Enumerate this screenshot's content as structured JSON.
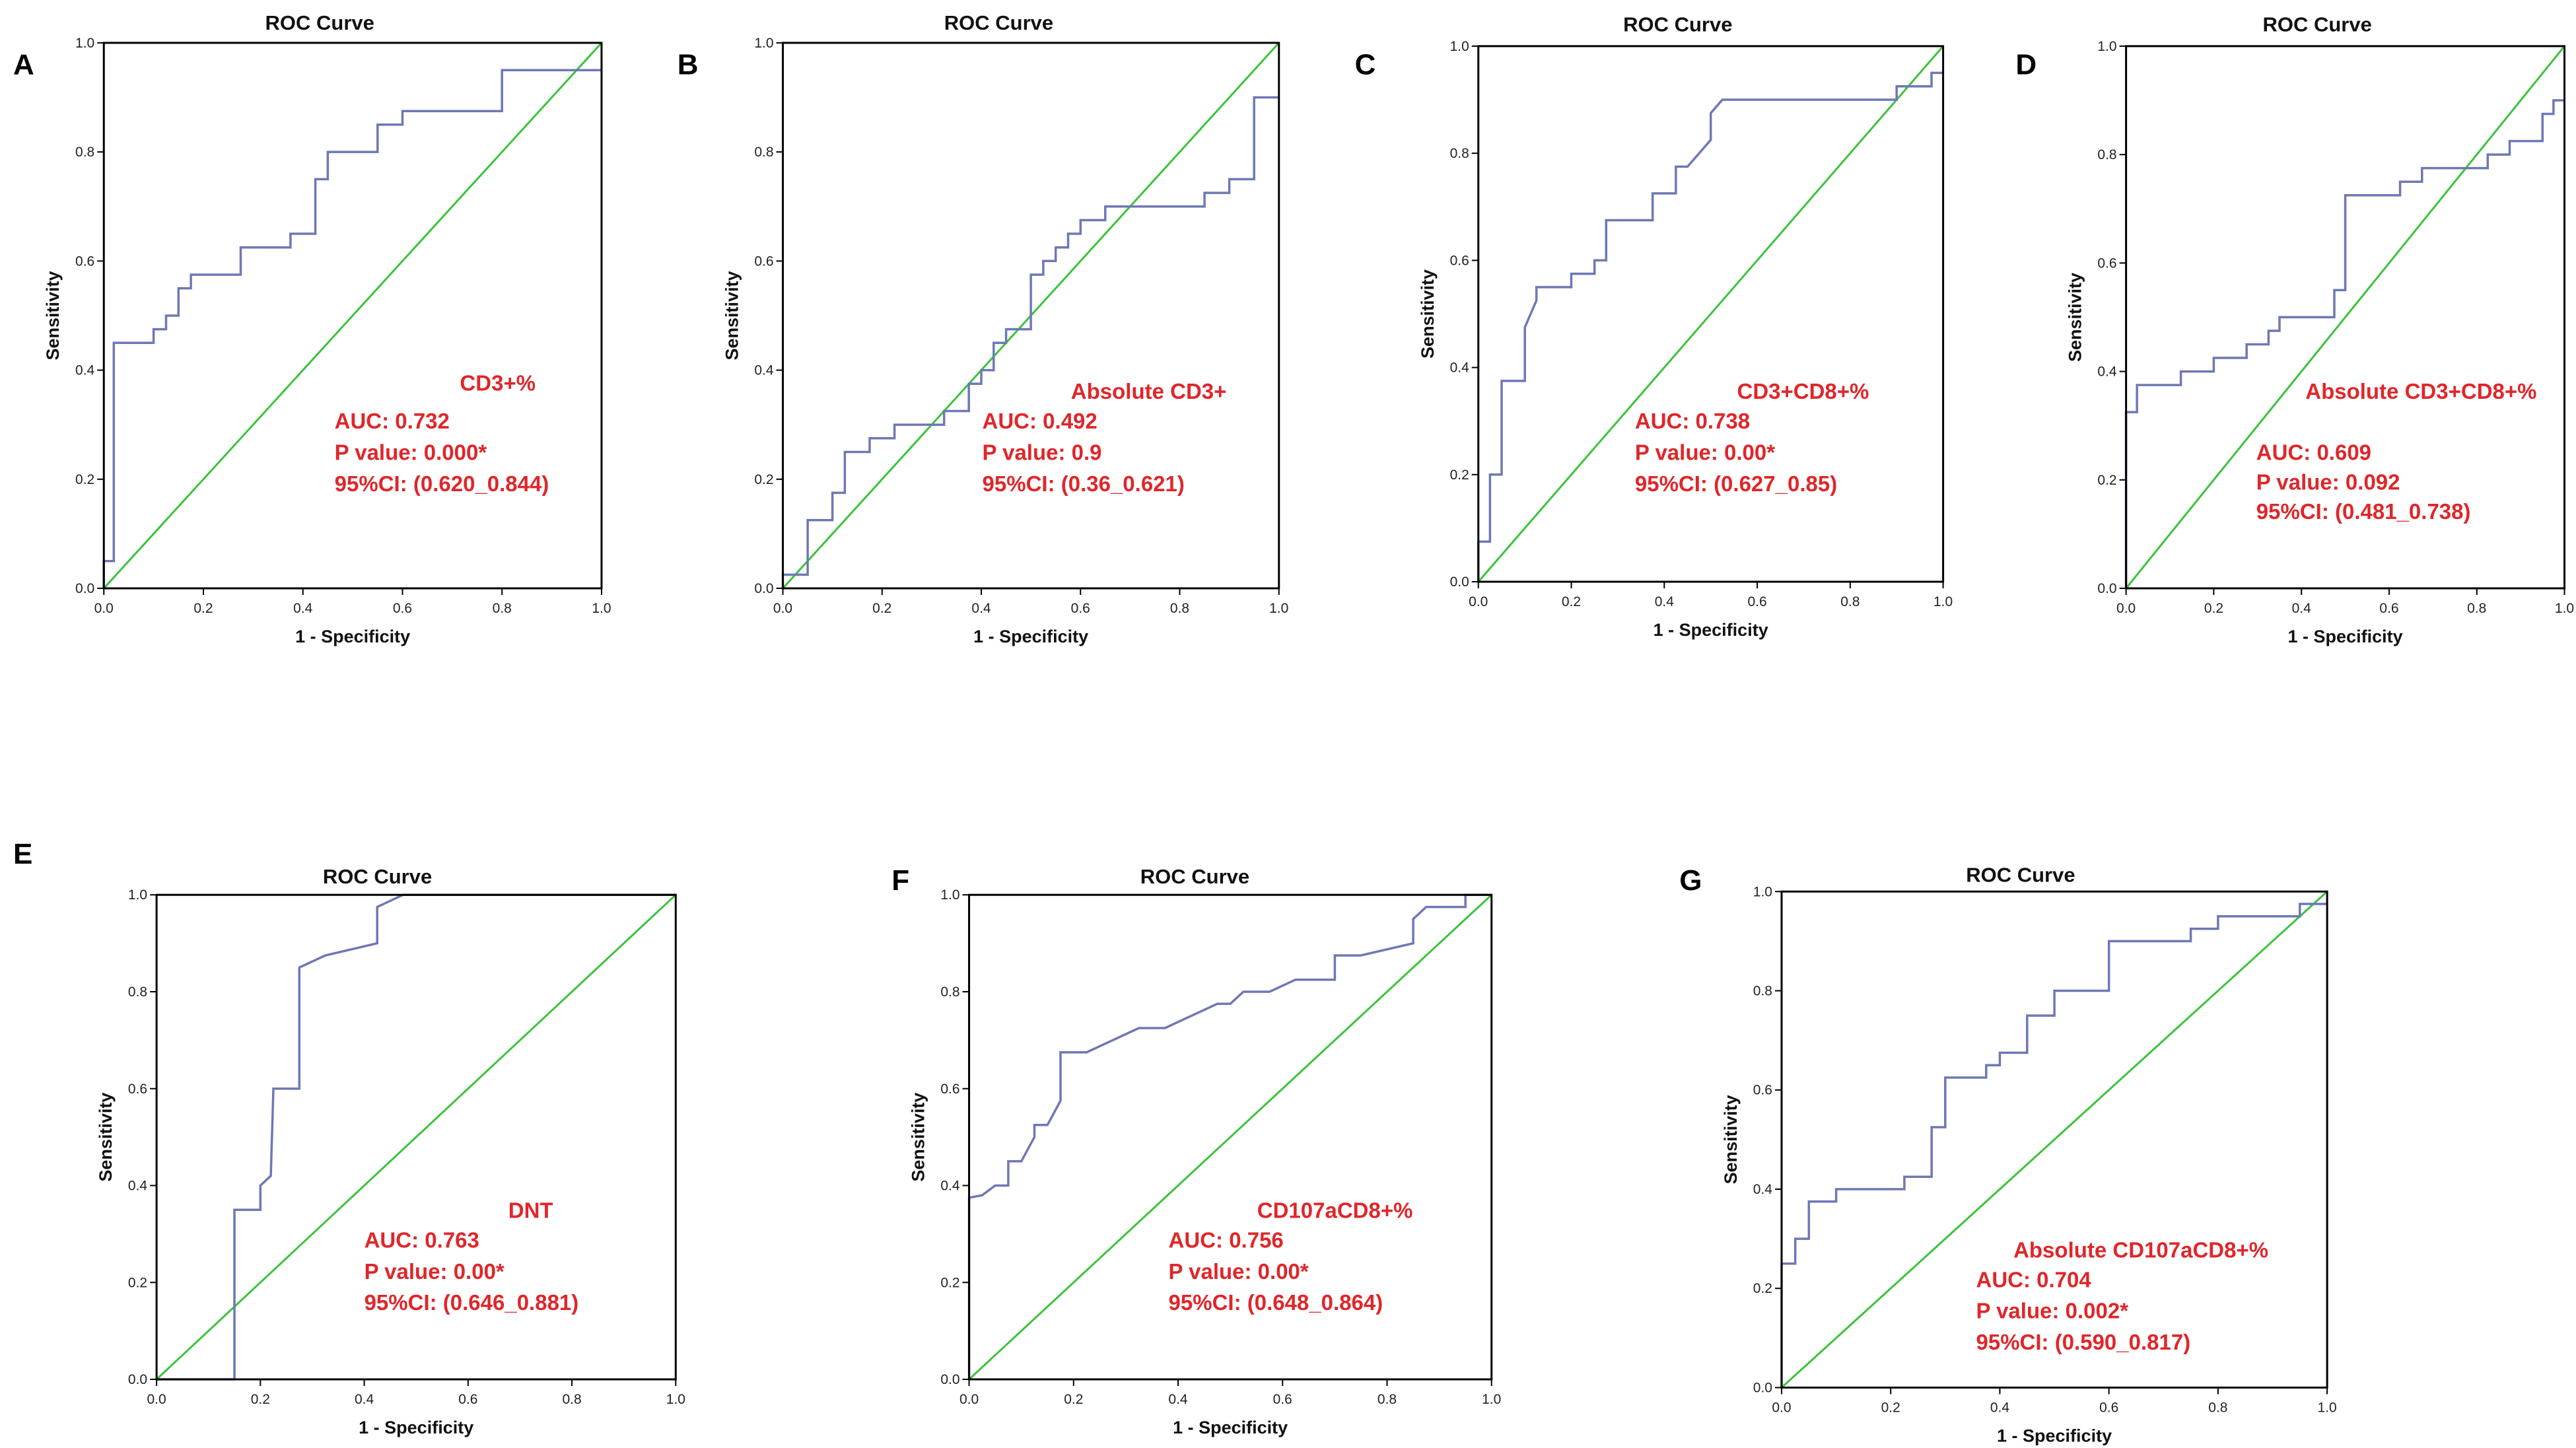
{
  "chart_data": [
    {
      "type": "line",
      "panel": "A",
      "title": "ROC Curve",
      "xlabel": "1 - Specificity",
      "ylabel": "Sensitivity",
      "xlim": [
        0,
        1
      ],
      "ylim": [
        0,
        1
      ],
      "xticks": [
        "0.0",
        "0.2",
        "0.4",
        "0.6",
        "0.8",
        "1.0"
      ],
      "yticks": [
        "0.0",
        "0.2",
        "0.4",
        "0.6",
        "0.8",
        "1.0"
      ],
      "reference_line": [
        [
          0,
          0
        ],
        [
          1,
          1
        ]
      ],
      "annotation": [
        "CD3+%",
        "AUC: 0.732",
        "P value: 0.000*",
        "95%CI: (0.620_0.844)"
      ],
      "series": [
        {
          "name": "ROC",
          "points": [
            [
              0,
              0
            ],
            [
              0,
              0.05
            ],
            [
              0.02,
              0.05
            ],
            [
              0.02,
              0.45
            ],
            [
              0.1,
              0.45
            ],
            [
              0.1,
              0.475
            ],
            [
              0.125,
              0.475
            ],
            [
              0.125,
              0.5
            ],
            [
              0.15,
              0.5
            ],
            [
              0.15,
              0.55
            ],
            [
              0.175,
              0.55
            ],
            [
              0.175,
              0.575
            ],
            [
              0.275,
              0.575
            ],
            [
              0.275,
              0.625
            ],
            [
              0.375,
              0.625
            ],
            [
              0.375,
              0.65
            ],
            [
              0.425,
              0.65
            ],
            [
              0.425,
              0.75
            ],
            [
              0.45,
              0.75
            ],
            [
              0.45,
              0.8
            ],
            [
              0.55,
              0.8
            ],
            [
              0.55,
              0.85
            ],
            [
              0.6,
              0.85
            ],
            [
              0.6,
              0.875
            ],
            [
              0.8,
              0.875
            ],
            [
              0.8,
              0.95
            ],
            [
              1,
              0.95
            ]
          ]
        }
      ]
    },
    {
      "type": "line",
      "panel": "B",
      "title": "ROC Curve",
      "xlabel": "1 - Specificity",
      "ylabel": "Sensitivity",
      "xlim": [
        0,
        1
      ],
      "ylim": [
        0,
        1
      ],
      "xticks": [
        "0.0",
        "0.2",
        "0.4",
        "0.6",
        "0.8",
        "1.0"
      ],
      "yticks": [
        "0.0",
        "0.2",
        "0.4",
        "0.6",
        "0.8",
        "1.0"
      ],
      "reference_line": [
        [
          0,
          0
        ],
        [
          1,
          1
        ]
      ],
      "annotation": [
        "Absolute CD3+",
        "AUC: 0.492",
        "P value: 0.9",
        "95%CI: (0.36_0.621)"
      ],
      "series": [
        {
          "name": "ROC",
          "points": [
            [
              0,
              0
            ],
            [
              0,
              0.025
            ],
            [
              0.05,
              0.025
            ],
            [
              0.05,
              0.125
            ],
            [
              0.1,
              0.125
            ],
            [
              0.1,
              0.175
            ],
            [
              0.125,
              0.175
            ],
            [
              0.125,
              0.25
            ],
            [
              0.175,
              0.25
            ],
            [
              0.175,
              0.275
            ],
            [
              0.225,
              0.275
            ],
            [
              0.225,
              0.3
            ],
            [
              0.325,
              0.3
            ],
            [
              0.325,
              0.325
            ],
            [
              0.375,
              0.325
            ],
            [
              0.375,
              0.375
            ],
            [
              0.4,
              0.375
            ],
            [
              0.4,
              0.4
            ],
            [
              0.425,
              0.4
            ],
            [
              0.425,
              0.45
            ],
            [
              0.45,
              0.45
            ],
            [
              0.45,
              0.475
            ],
            [
              0.5,
              0.475
            ],
            [
              0.5,
              0.575
            ],
            [
              0.525,
              0.575
            ],
            [
              0.525,
              0.6
            ],
            [
              0.55,
              0.6
            ],
            [
              0.55,
              0.625
            ],
            [
              0.575,
              0.625
            ],
            [
              0.575,
              0.65
            ],
            [
              0.6,
              0.65
            ],
            [
              0.6,
              0.675
            ],
            [
              0.65,
              0.675
            ],
            [
              0.65,
              0.7
            ],
            [
              0.85,
              0.7
            ],
            [
              0.85,
              0.725
            ],
            [
              0.9,
              0.725
            ],
            [
              0.9,
              0.75
            ],
            [
              0.95,
              0.75
            ],
            [
              0.95,
              0.9
            ],
            [
              1,
              0.9
            ]
          ]
        }
      ]
    },
    {
      "type": "line",
      "panel": "C",
      "title": "ROC Curve",
      "xlabel": "1 - Specificity",
      "ylabel": "Sensitivity",
      "xlim": [
        0,
        1
      ],
      "ylim": [
        0,
        1
      ],
      "xticks": [
        "0.0",
        "0.2",
        "0.4",
        "0.6",
        "0.8",
        "1.0"
      ],
      "yticks": [
        "0.0",
        "0.2",
        "0.4",
        "0.6",
        "0.8",
        "1.0"
      ],
      "reference_line": [
        [
          0,
          0
        ],
        [
          1,
          1
        ]
      ],
      "annotation": [
        "CD3+CD8+%",
        "AUC: 0.738",
        "P value: 0.00*",
        "95%CI: (0.627_0.85)"
      ],
      "series": [
        {
          "name": "ROC",
          "points": [
            [
              0,
              0
            ],
            [
              0,
              0.075
            ],
            [
              0.025,
              0.075
            ],
            [
              0.025,
              0.2
            ],
            [
              0.05,
              0.2
            ],
            [
              0.05,
              0.375
            ],
            [
              0.1,
              0.375
            ],
            [
              0.1,
              0.475
            ],
            [
              0.125,
              0.525
            ],
            [
              0.125,
              0.55
            ],
            [
              0.2,
              0.55
            ],
            [
              0.2,
              0.575
            ],
            [
              0.25,
              0.575
            ],
            [
              0.25,
              0.6
            ],
            [
              0.275,
              0.6
            ],
            [
              0.275,
              0.675
            ],
            [
              0.375,
              0.675
            ],
            [
              0.375,
              0.725
            ],
            [
              0.425,
              0.725
            ],
            [
              0.425,
              0.775
            ],
            [
              0.45,
              0.775
            ],
            [
              0.475,
              0.8
            ],
            [
              0.5,
              0.825
            ],
            [
              0.5,
              0.875
            ],
            [
              0.525,
              0.9
            ],
            [
              0.9,
              0.9
            ],
            [
              0.9,
              0.925
            ],
            [
              0.975,
              0.925
            ],
            [
              0.975,
              0.95
            ],
            [
              1,
              0.95
            ]
          ]
        }
      ]
    },
    {
      "type": "line",
      "panel": "D",
      "title": "ROC Curve",
      "xlabel": "1 - Specificity",
      "ylabel": "Sensitivity",
      "xlim": [
        0,
        1
      ],
      "ylim": [
        0,
        1
      ],
      "xticks": [
        "0.0",
        "0.2",
        "0.4",
        "0.6",
        "0.8",
        "1.0"
      ],
      "yticks": [
        "0.0",
        "0.2",
        "0.4",
        "0.6",
        "0.8",
        "1.0"
      ],
      "reference_line": [
        [
          0,
          0
        ],
        [
          1,
          1
        ]
      ],
      "annotation": [
        "Absolute CD3+CD8+%",
        "AUC: 0.609",
        "P value: 0.092",
        "95%CI: (0.481_0.738)"
      ],
      "series": [
        {
          "name": "ROC",
          "points": [
            [
              0,
              0
            ],
            [
              0,
              0.325
            ],
            [
              0.025,
              0.325
            ],
            [
              0.025,
              0.375
            ],
            [
              0.125,
              0.375
            ],
            [
              0.125,
              0.4
            ],
            [
              0.2,
              0.4
            ],
            [
              0.2,
              0.425
            ],
            [
              0.275,
              0.425
            ],
            [
              0.275,
              0.45
            ],
            [
              0.325,
              0.45
            ],
            [
              0.325,
              0.475
            ],
            [
              0.35,
              0.475
            ],
            [
              0.35,
              0.5
            ],
            [
              0.475,
              0.5
            ],
            [
              0.475,
              0.55
            ],
            [
              0.5,
              0.55
            ],
            [
              0.5,
              0.725
            ],
            [
              0.625,
              0.725
            ],
            [
              0.625,
              0.75
            ],
            [
              0.675,
              0.75
            ],
            [
              0.675,
              0.775
            ],
            [
              0.825,
              0.775
            ],
            [
              0.825,
              0.8
            ],
            [
              0.875,
              0.8
            ],
            [
              0.875,
              0.825
            ],
            [
              0.95,
              0.825
            ],
            [
              0.95,
              0.875
            ],
            [
              0.975,
              0.875
            ],
            [
              0.975,
              0.9
            ],
            [
              1,
              0.9
            ]
          ]
        }
      ]
    },
    {
      "type": "line",
      "panel": "E",
      "title": "ROC Curve",
      "xlabel": "1 - Specificity",
      "ylabel": "Sensitivity",
      "xlim": [
        0,
        1
      ],
      "ylim": [
        0,
        1
      ],
      "xticks": [
        "0.0",
        "0.2",
        "0.4",
        "0.6",
        "0.8",
        "1.0"
      ],
      "yticks": [
        "0.0",
        "0.2",
        "0.4",
        "0.6",
        "0.8",
        "1.0"
      ],
      "reference_line": [
        [
          0,
          0
        ],
        [
          1,
          1
        ]
      ],
      "annotation": [
        "DNT",
        "AUC: 0.763",
        "P value: 0.00*",
        "95%CI: (0.646_0.881)"
      ],
      "series": [
        {
          "name": "ROC",
          "points": [
            [
              0,
              0
            ],
            [
              0.15,
              0
            ],
            [
              0.15,
              0.35
            ],
            [
              0.2,
              0.35
            ],
            [
              0.2,
              0.4
            ],
            [
              0.22,
              0.42
            ],
            [
              0.225,
              0.6
            ],
            [
              0.275,
              0.6
            ],
            [
              0.275,
              0.85
            ],
            [
              0.325,
              0.875
            ],
            [
              0.425,
              0.9
            ],
            [
              0.425,
              0.975
            ],
            [
              0.475,
              1
            ],
            [
              1,
              1
            ]
          ]
        }
      ]
    },
    {
      "type": "line",
      "panel": "F",
      "title": "ROC Curve",
      "xlabel": "1 - Specificity",
      "ylabel": "Sensitivity",
      "xlim": [
        0,
        1
      ],
      "ylim": [
        0,
        1
      ],
      "xticks": [
        "0.0",
        "0.2",
        "0.4",
        "0.6",
        "0.8",
        "1.0"
      ],
      "yticks": [
        "0.0",
        "0.2",
        "0.4",
        "0.6",
        "0.8",
        "1.0"
      ],
      "reference_line": [
        [
          0,
          0
        ],
        [
          1,
          1
        ]
      ],
      "annotation": [
        "CD107aCD8+%",
        "AUC: 0.756",
        "P value: 0.00*",
        "95%CI: (0.648_0.864)"
      ],
      "series": [
        {
          "name": "ROC",
          "points": [
            [
              0,
              0
            ],
            [
              0,
              0.375
            ],
            [
              0.025,
              0.38
            ],
            [
              0.05,
              0.4
            ],
            [
              0.075,
              0.4
            ],
            [
              0.075,
              0.45
            ],
            [
              0.1,
              0.45
            ],
            [
              0.125,
              0.5
            ],
            [
              0.125,
              0.525
            ],
            [
              0.15,
              0.525
            ],
            [
              0.175,
              0.575
            ],
            [
              0.175,
              0.675
            ],
            [
              0.225,
              0.675
            ],
            [
              0.325,
              0.725
            ],
            [
              0.375,
              0.725
            ],
            [
              0.475,
              0.775
            ],
            [
              0.5,
              0.775
            ],
            [
              0.525,
              0.8
            ],
            [
              0.575,
              0.8
            ],
            [
              0.625,
              0.825
            ],
            [
              0.7,
              0.825
            ],
            [
              0.7,
              0.875
            ],
            [
              0.75,
              0.875
            ],
            [
              0.85,
              0.9
            ],
            [
              0.85,
              0.95
            ],
            [
              0.875,
              0.975
            ],
            [
              0.95,
              0.975
            ],
            [
              0.95,
              1
            ],
            [
              1,
              1
            ]
          ]
        }
      ]
    },
    {
      "type": "line",
      "panel": "G",
      "title": "ROC Curve",
      "xlabel": "1 - Specificity",
      "ylabel": "Sensitivity",
      "xlim": [
        0,
        1
      ],
      "ylim": [
        0,
        1
      ],
      "xticks": [
        "0.0",
        "0.2",
        "0.4",
        "0.6",
        "0.8",
        "1.0"
      ],
      "yticks": [
        "0.0",
        "0.2",
        "0.4",
        "0.6",
        "0.8",
        "1.0"
      ],
      "reference_line": [
        [
          0,
          0
        ],
        [
          1,
          1
        ]
      ],
      "annotation": [
        "Absolute CD107aCD8+%",
        "AUC: 0.704",
        "P value: 0.002*",
        "95%CI: (0.590_0.817)"
      ],
      "series": [
        {
          "name": "ROC",
          "points": [
            [
              0,
              0
            ],
            [
              0,
              0.25
            ],
            [
              0.025,
              0.25
            ],
            [
              0.025,
              0.3
            ],
            [
              0.05,
              0.3
            ],
            [
              0.05,
              0.375
            ],
            [
              0.1,
              0.375
            ],
            [
              0.1,
              0.4
            ],
            [
              0.225,
              0.4
            ],
            [
              0.225,
              0.425
            ],
            [
              0.275,
              0.425
            ],
            [
              0.275,
              0.525
            ],
            [
              0.3,
              0.525
            ],
            [
              0.3,
              0.625
            ],
            [
              0.375,
              0.625
            ],
            [
              0.375,
              0.65
            ],
            [
              0.4,
              0.65
            ],
            [
              0.4,
              0.675
            ],
            [
              0.45,
              0.675
            ],
            [
              0.45,
              0.75
            ],
            [
              0.5,
              0.75
            ],
            [
              0.5,
              0.8
            ],
            [
              0.6,
              0.8
            ],
            [
              0.6,
              0.9
            ],
            [
              0.75,
              0.9
            ],
            [
              0.75,
              0.925
            ],
            [
              0.8,
              0.925
            ],
            [
              0.8,
              0.95
            ],
            [
              0.95,
              0.95
            ],
            [
              0.95,
              0.975
            ],
            [
              1,
              0.975
            ]
          ]
        }
      ]
    }
  ]
}
